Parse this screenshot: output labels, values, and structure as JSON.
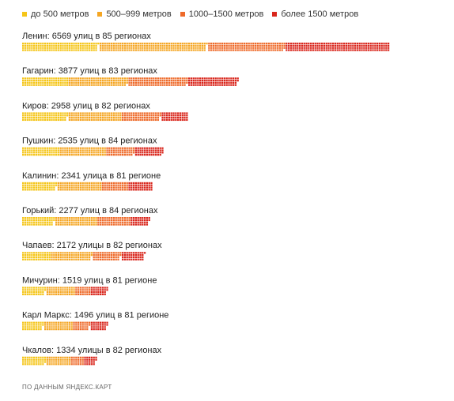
{
  "legend": [
    {
      "label": "до 500 метров",
      "color": "#f5c518"
    },
    {
      "label": "500–999 метров",
      "color": "#f5a623"
    },
    {
      "label": "1000–1500 метров",
      "color": "#ee6a2a"
    },
    {
      "label": "более 1500 метров",
      "color": "#d9261c"
    }
  ],
  "source": "ПО ДАННЫМ ЯНДЕКС.КАРТ",
  "chart_data": {
    "type": "bar",
    "orientation": "horizontal",
    "stacked": true,
    "unit_streets_per_cell": 10,
    "categories": [
      "Ленин: 6569 улиц в 85 регионах",
      "Гагарин: 3877 улиц в 83 регионах",
      "Киров: 2958 улиц в 82 регионах",
      "Пушкин: 2535 улиц в 84 регионах",
      "Калинин: 2341 улица в 81 регионе",
      "Горький: 2277 улиц в 84 регионах",
      "Чапаев: 2172 улицы в 82 регионах",
      "Мичурин: 1519 улиц в 81 регионе",
      "Карл Маркс: 1496 улиц в 81 регионе",
      "Чкалов: 1334 улицы в 82 регионах"
    ],
    "totals": [
      6569,
      3877,
      2958,
      2535,
      2341,
      2277,
      2172,
      1519,
      1496,
      1334
    ],
    "series": [
      {
        "name": "до 500 метров",
        "color": "#f5c518",
        "values": [
          1370,
          840,
          820,
          680,
          620,
          580,
          520,
          420,
          380,
          430
        ]
      },
      {
        "name": "500–999 метров",
        "color": "#f5a623",
        "values": [
          1930,
          1070,
          960,
          840,
          800,
          760,
          740,
          520,
          520,
          440
        ]
      },
      {
        "name": "1000–1500 метров",
        "color": "#ee6a2a",
        "values": [
          1390,
          1070,
          700,
          510,
          480,
          600,
          500,
          280,
          300,
          240
        ]
      },
      {
        "name": "более 1500 метров",
        "color": "#d9261c",
        "values": [
          1879,
          897,
          478,
          505,
          441,
          337,
          412,
          299,
          296,
          224
        ]
      }
    ]
  }
}
